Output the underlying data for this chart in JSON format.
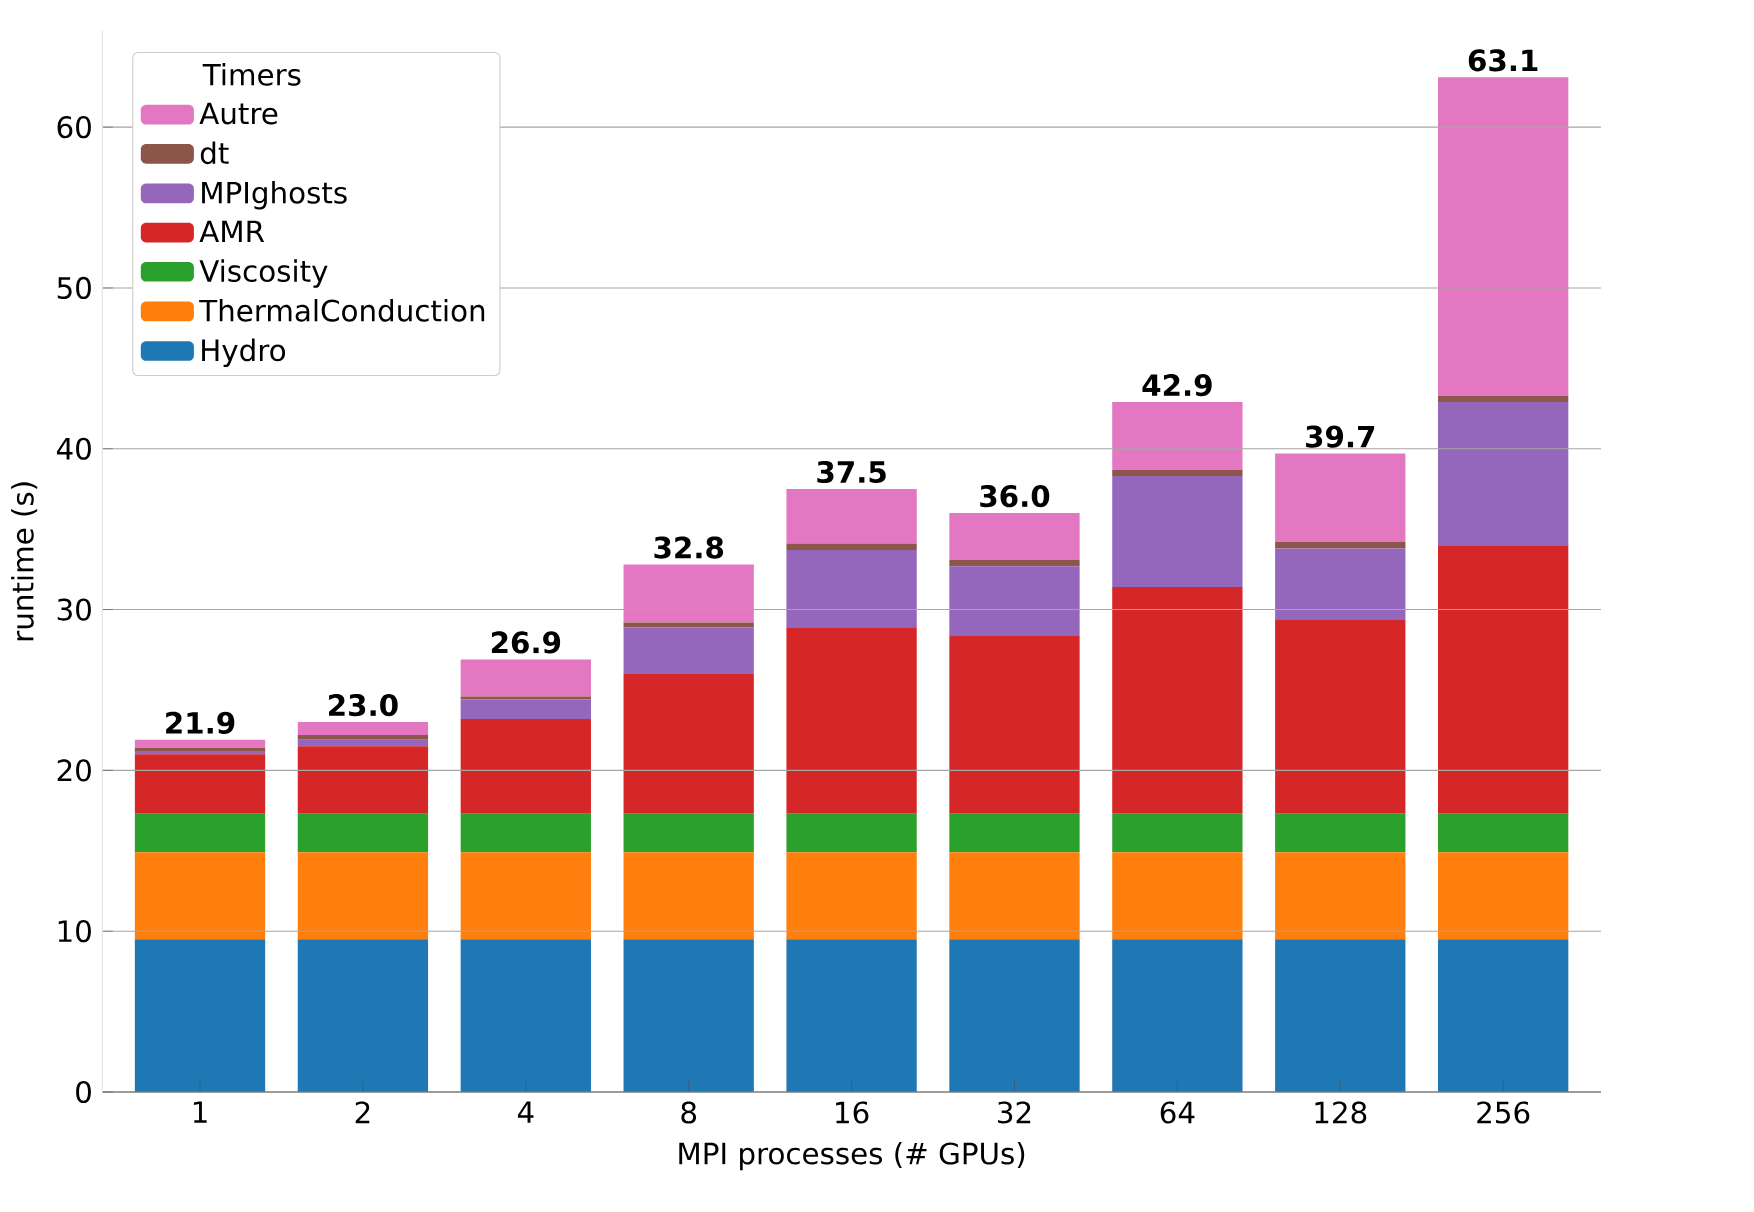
{
  "chart_data": {
    "type": "bar",
    "stacked": true,
    "xlabel": "MPI processes (# GPUs)",
    "ylabel": "runtime (s)",
    "legend_title": "Timers",
    "categories": [
      "1",
      "2",
      "4",
      "8",
      "16",
      "32",
      "64",
      "128",
      "256"
    ],
    "series": [
      {
        "name": "Hydro",
        "color": "#1f77b4",
        "values": [
          9.5,
          9.5,
          9.5,
          9.5,
          9.5,
          9.5,
          9.5,
          9.5,
          9.5
        ]
      },
      {
        "name": "ThermalConduction",
        "color": "#ff7f0e",
        "values": [
          5.4,
          5.4,
          5.4,
          5.4,
          5.4,
          5.4,
          5.4,
          5.4,
          5.4
        ]
      },
      {
        "name": "Viscosity",
        "color": "#2ca02c",
        "values": [
          2.4,
          2.4,
          2.4,
          2.4,
          2.4,
          2.4,
          2.4,
          2.4,
          2.4
        ]
      },
      {
        "name": "AMR",
        "color": "#d62728",
        "values": [
          3.7,
          4.2,
          5.9,
          8.7,
          11.6,
          11.1,
          14.1,
          12.1,
          16.7
        ]
      },
      {
        "name": "MPIghosts",
        "color": "#9467bd",
        "values": [
          0.2,
          0.4,
          1.2,
          2.9,
          4.8,
          4.3,
          6.9,
          4.4,
          8.9
        ]
      },
      {
        "name": "dt",
        "color": "#8c564b",
        "values": [
          0.2,
          0.3,
          0.2,
          0.3,
          0.4,
          0.4,
          0.4,
          0.4,
          0.4
        ]
      },
      {
        "name": "Autre",
        "color": "#e377c2",
        "values": [
          0.5,
          0.8,
          2.3,
          3.6,
          3.4,
          2.9,
          4.2,
          5.5,
          19.8
        ]
      }
    ],
    "totals": [
      "21.9",
      "23.0",
      "26.9",
      "32.8",
      "37.5",
      "36.0",
      "42.9",
      "39.7",
      "63.1"
    ],
    "ylim": [
      0,
      66
    ],
    "yticks": [
      0,
      10,
      20,
      30,
      40,
      50,
      60
    ],
    "grid": "y",
    "legend": "top left"
  }
}
